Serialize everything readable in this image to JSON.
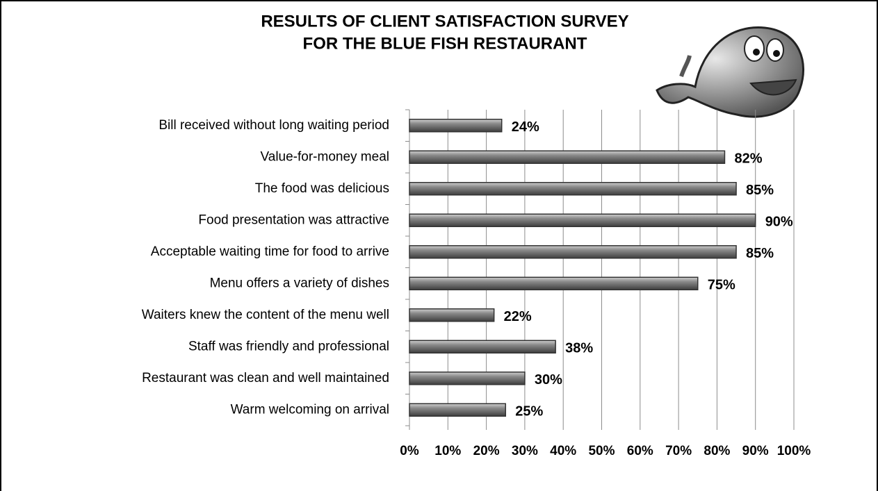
{
  "chart_data": {
    "type": "bar",
    "orientation": "horizontal",
    "title": [
      "RESULTS OF CLIENT SATISFACTION SURVEY",
      "FOR THE BLUE FISH RESTAURANT"
    ],
    "categories": [
      "Bill received without long waiting period",
      "Value-for-money meal",
      "The food was delicious",
      "Food presentation was attractive",
      "Acceptable waiting time for food to arrive",
      "Menu offers a variety of dishes",
      "Waiters knew the content of the menu well",
      "Staff was friendly and professional",
      "Restaurant was clean and well maintained",
      "Warm welcoming on arrival"
    ],
    "values": [
      24,
      82,
      85,
      90,
      85,
      75,
      22,
      38,
      30,
      25
    ],
    "value_labels": [
      "24%",
      "82%",
      "85%",
      "90%",
      "85%",
      "75%",
      "22%",
      "38%",
      "30%",
      "25%"
    ],
    "color": "#7a7a7a",
    "xlim": [
      0,
      100
    ],
    "xticks": [
      {
        "value": 0,
        "label": "0%"
      },
      {
        "value": 10,
        "label": "10%"
      },
      {
        "value": 20,
        "label": "20%"
      },
      {
        "value": 30,
        "label": "30%"
      },
      {
        "value": 40,
        "label": "40%"
      },
      {
        "value": 50,
        "label": "50%"
      },
      {
        "value": 60,
        "label": "60%"
      },
      {
        "value": 70,
        "label": "70%"
      },
      {
        "value": 80,
        "label": "80%"
      },
      {
        "value": 90,
        "label": "90%"
      },
      {
        "value": 100,
        "label": "100%"
      }
    ],
    "grid": true
  }
}
